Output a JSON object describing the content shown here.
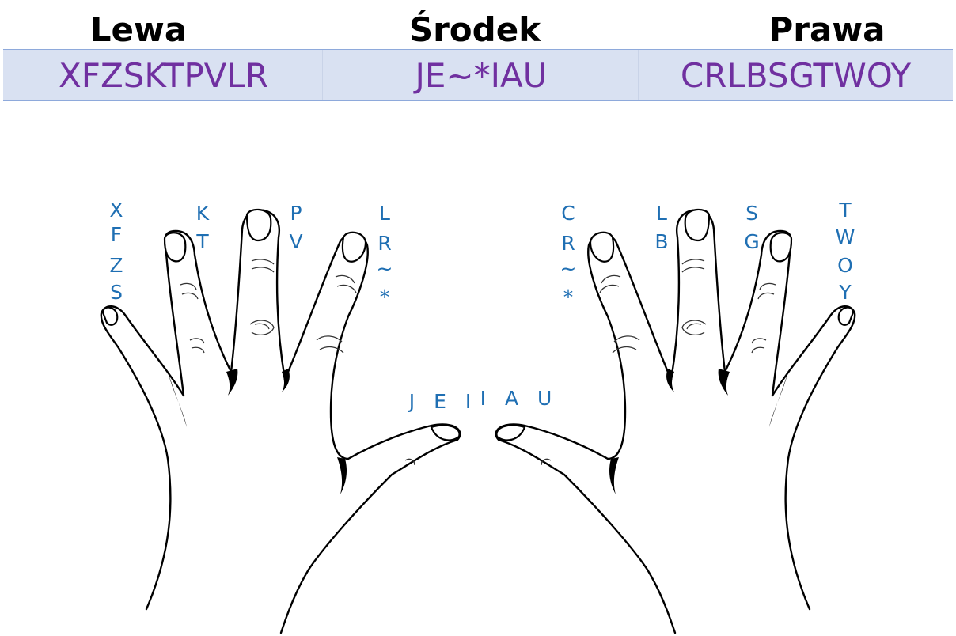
{
  "header": {
    "left": "Lewa",
    "middle": "Środek",
    "right": "Prawa"
  },
  "sequences": {
    "left": "XFZSKTPVLR",
    "middle": "JE~*IAU",
    "right": "CRLBSGTWOY"
  },
  "fingers": {
    "left_pinky": [
      "X",
      "F",
      "Z",
      "S"
    ],
    "left_ring": [
      "K",
      "T"
    ],
    "left_middle": [
      "P",
      "V"
    ],
    "left_index": [
      "L",
      "R",
      "~",
      "*"
    ],
    "left_thumb": "J E I",
    "right_thumb": "I A U",
    "right_index": [
      "C",
      "R",
      "~",
      "*"
    ],
    "right_middle": [
      "L",
      "B"
    ],
    "right_ring": [
      "S",
      "G"
    ],
    "right_pinky": [
      "T",
      "W",
      "O",
      "Y"
    ]
  },
  "colors": {
    "band": "#d9e1f2",
    "band_text": "#7030a0",
    "finger_label": "#1f6fb3"
  }
}
